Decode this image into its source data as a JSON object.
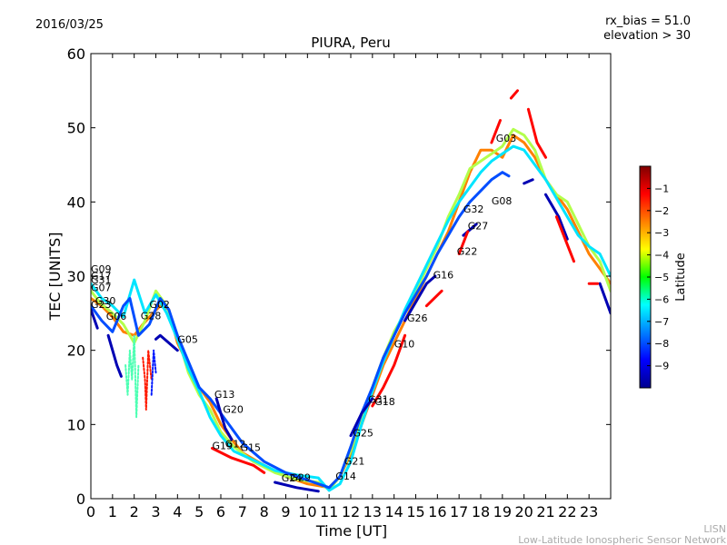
{
  "header": {
    "date": "2016/03/25",
    "rx_bias": "rx_bias = 51.0",
    "elevation": "elevation > 30"
  },
  "footer": {
    "line1": "LISN",
    "line2": "Low-Latitude Ionospheric Sensor Network"
  },
  "chart_data": {
    "type": "line",
    "title": "PIURA, Peru",
    "xlabel": "Time [UT]",
    "ylabel": "TEC [UNITS]",
    "xlim": [
      0,
      24
    ],
    "ylim": [
      0,
      60
    ],
    "xticks": [
      0,
      1,
      2,
      3,
      4,
      5,
      6,
      7,
      8,
      9,
      10,
      11,
      12,
      13,
      14,
      15,
      16,
      17,
      18,
      19,
      20,
      21,
      22,
      23
    ],
    "yticks": [
      0,
      10,
      20,
      30,
      40,
      50,
      60
    ],
    "grid": false,
    "colorbar": {
      "label": "Latitude",
      "range": [
        -10,
        0
      ],
      "ticks": [
        -1,
        -2,
        -3,
        -4,
        -5,
        -6,
        -7,
        -8,
        -9
      ]
    },
    "sat_labels": [
      {
        "name": "G09",
        "x": 0.0,
        "y": 30.5
      },
      {
        "name": "G17",
        "x": 0.0,
        "y": 29.6
      },
      {
        "name": "G31",
        "x": 0.0,
        "y": 29.0
      },
      {
        "name": "G07",
        "x": 0.0,
        "y": 28.0
      },
      {
        "name": "G30",
        "x": 0.2,
        "y": 26.2
      },
      {
        "name": "G23",
        "x": 0.0,
        "y": 25.7
      },
      {
        "name": "G06",
        "x": 0.7,
        "y": 24.1
      },
      {
        "name": "G02",
        "x": 2.7,
        "y": 25.7
      },
      {
        "name": "G28",
        "x": 2.3,
        "y": 24.2
      },
      {
        "name": "G05",
        "x": 4.0,
        "y": 21.0
      },
      {
        "name": "G13",
        "x": 5.7,
        "y": 13.6
      },
      {
        "name": "G20",
        "x": 6.1,
        "y": 11.6
      },
      {
        "name": "G19",
        "x": 5.6,
        "y": 6.7
      },
      {
        "name": "G12",
        "x": 6.2,
        "y": 6.9
      },
      {
        "name": "G15",
        "x": 6.9,
        "y": 6.4
      },
      {
        "name": "G24",
        "x": 8.8,
        "y": 2.3
      },
      {
        "name": "G29",
        "x": 9.2,
        "y": 2.4
      },
      {
        "name": "G14",
        "x": 11.3,
        "y": 2.6
      },
      {
        "name": "G21",
        "x": 11.7,
        "y": 4.6
      },
      {
        "name": "G25",
        "x": 12.1,
        "y": 8.4
      },
      {
        "name": "G31",
        "x": 12.8,
        "y": 12.9
      },
      {
        "name": "G18",
        "x": 13.1,
        "y": 12.6
      },
      {
        "name": "G10",
        "x": 14.0,
        "y": 20.4
      },
      {
        "name": "G26",
        "x": 14.6,
        "y": 23.9
      },
      {
        "name": "G16",
        "x": 15.8,
        "y": 29.7
      },
      {
        "name": "G22",
        "x": 16.9,
        "y": 32.9
      },
      {
        "name": "G27",
        "x": 17.4,
        "y": 36.3
      },
      {
        "name": "G32",
        "x": 17.2,
        "y": 38.6
      },
      {
        "name": "G08",
        "x": 18.5,
        "y": 39.7
      },
      {
        "name": "G03",
        "x": 18.7,
        "y": 48.1
      }
    ],
    "series": [
      {
        "lat": -2.5,
        "style": "solid",
        "points": [
          [
            0,
            27
          ],
          [
            0.5,
            26
          ],
          [
            1,
            24.5
          ],
          [
            1.5,
            22.5
          ],
          [
            2,
            22
          ],
          [
            2.4,
            23.5
          ],
          [
            2.8,
            24.8
          ],
          [
            3.2,
            26
          ],
          [
            3.6,
            25.5
          ],
          [
            4,
            21
          ],
          [
            4.5,
            18
          ],
          [
            5,
            15
          ],
          [
            5.5,
            13
          ],
          [
            6,
            10
          ],
          [
            6.5,
            8
          ],
          [
            7,
            6.2
          ],
          [
            8,
            4.5
          ],
          [
            9,
            3
          ],
          [
            10,
            2
          ],
          [
            11,
            1.5
          ],
          [
            11.5,
            3
          ],
          [
            12,
            6
          ],
          [
            12.5,
            10
          ],
          [
            13,
            14
          ],
          [
            13.5,
            18
          ],
          [
            14,
            21
          ],
          [
            14.5,
            24
          ],
          [
            15,
            27
          ],
          [
            15.5,
            30
          ],
          [
            16,
            33
          ],
          [
            16.5,
            36
          ],
          [
            17,
            40
          ],
          [
            17.5,
            44
          ],
          [
            18,
            47
          ],
          [
            18.5,
            47
          ],
          [
            19,
            46
          ],
          [
            19.5,
            49
          ],
          [
            20,
            48
          ],
          [
            20.5,
            46
          ],
          [
            21,
            43
          ],
          [
            21.5,
            41
          ],
          [
            22,
            39
          ],
          [
            22.5,
            36
          ],
          [
            23,
            33
          ],
          [
            23.5,
            31
          ],
          [
            24,
            29
          ]
        ]
      },
      {
        "lat": -4.5,
        "style": "solid",
        "points": [
          [
            0,
            28
          ],
          [
            0.4,
            26.5
          ],
          [
            1,
            25
          ],
          [
            1.5,
            23.5
          ],
          [
            2,
            21
          ],
          [
            2.5,
            24
          ],
          [
            3,
            28
          ],
          [
            3.5,
            26
          ],
          [
            4,
            22
          ],
          [
            4.5,
            17
          ],
          [
            5,
            14
          ],
          [
            5.5,
            12
          ],
          [
            6,
            9
          ],
          [
            6.6,
            7
          ],
          [
            7.5,
            5
          ],
          [
            8.5,
            3.5
          ],
          [
            9.5,
            2.6
          ],
          [
            10.5,
            2.2
          ],
          [
            11,
            1.2
          ],
          [
            11.5,
            3
          ],
          [
            12,
            6.5
          ],
          [
            12.5,
            11
          ],
          [
            13,
            15
          ],
          [
            13.5,
            19
          ],
          [
            14,
            22.5
          ],
          [
            14.5,
            25
          ],
          [
            15,
            28
          ],
          [
            15.5,
            31
          ],
          [
            16,
            34
          ],
          [
            16.5,
            38
          ],
          [
            17,
            41
          ],
          [
            17.5,
            44.5
          ],
          [
            18,
            45.5
          ],
          [
            18.5,
            46.5
          ],
          [
            19,
            47.5
          ],
          [
            19.5,
            49.8
          ],
          [
            20,
            49
          ],
          [
            20.5,
            47
          ],
          [
            21,
            43
          ],
          [
            21.5,
            41
          ],
          [
            22,
            40
          ],
          [
            22.5,
            37
          ],
          [
            23,
            34
          ],
          [
            23.5,
            32
          ],
          [
            24,
            28
          ]
        ]
      },
      {
        "lat": -6.5,
        "style": "solid",
        "points": [
          [
            0,
            29
          ],
          [
            0.5,
            27
          ],
          [
            1,
            26
          ],
          [
            1.5,
            24.5
          ],
          [
            2,
            29.5
          ],
          [
            2.5,
            25
          ],
          [
            3,
            27.5
          ],
          [
            3.5,
            25
          ],
          [
            4,
            21.5
          ],
          [
            4.5,
            17.5
          ],
          [
            5,
            14.5
          ],
          [
            5.5,
            11
          ],
          [
            6,
            8.5
          ],
          [
            6.6,
            6.4
          ],
          [
            7.5,
            5.2
          ],
          [
            8.5,
            3.8
          ],
          [
            9.5,
            3.2
          ],
          [
            10.5,
            2.8
          ],
          [
            11,
            1.1
          ],
          [
            11.5,
            2
          ],
          [
            12,
            5
          ],
          [
            12.5,
            10
          ],
          [
            13,
            14.5
          ],
          [
            13.5,
            18.5
          ],
          [
            14,
            22
          ],
          [
            14.5,
            25.5
          ],
          [
            15,
            28.5
          ],
          [
            15.5,
            31.5
          ],
          [
            16,
            34.5
          ],
          [
            16.5,
            37.5
          ],
          [
            17,
            40
          ],
          [
            17.5,
            42
          ],
          [
            18,
            44
          ],
          [
            18.5,
            45.5
          ],
          [
            19,
            46.5
          ],
          [
            19.5,
            47.5
          ],
          [
            20,
            47
          ],
          [
            20.5,
            45
          ],
          [
            21,
            43
          ],
          [
            21.5,
            40.5
          ],
          [
            22,
            38
          ],
          [
            22.5,
            35.5
          ],
          [
            23,
            34
          ],
          [
            23.5,
            33
          ],
          [
            24,
            30
          ]
        ]
      },
      {
        "lat": -8.0,
        "style": "solid",
        "points": [
          [
            0,
            26
          ],
          [
            0.5,
            24
          ],
          [
            1,
            22.5
          ],
          [
            1.5,
            26
          ],
          [
            1.8,
            27
          ],
          [
            2.2,
            22
          ],
          [
            2.7,
            23.5
          ],
          [
            3.2,
            27
          ],
          [
            3.6,
            25.5
          ],
          [
            4,
            22
          ],
          [
            4.5,
            18.5
          ],
          [
            5,
            15
          ],
          [
            5.5,
            13.5
          ],
          [
            6,
            11.5
          ],
          [
            6.5,
            9.5
          ],
          [
            7,
            7.5
          ],
          [
            8,
            5
          ],
          [
            9,
            3.5
          ],
          [
            10,
            2.5
          ],
          [
            11,
            1.5
          ],
          [
            11.5,
            3
          ],
          [
            12,
            7
          ],
          [
            12.5,
            11.5
          ],
          [
            13,
            15
          ],
          [
            13.5,
            19
          ],
          [
            14,
            22
          ],
          [
            14.5,
            25
          ],
          [
            15,
            27.5
          ],
          [
            15.5,
            30
          ],
          [
            16,
            33
          ],
          [
            16.5,
            35.5
          ],
          [
            17,
            38
          ],
          [
            17.5,
            40
          ],
          [
            18,
            41.5
          ],
          [
            18.5,
            43
          ],
          [
            19,
            44
          ],
          [
            19.3,
            43.5
          ]
        ]
      },
      {
        "lat": -9.5,
        "style": "solid",
        "points": [
          [
            0,
            25.5
          ],
          [
            0.3,
            23
          ]
        ]
      },
      {
        "lat": -9.5,
        "style": "solid",
        "points": [
          [
            0.8,
            22
          ],
          [
            1.2,
            18
          ],
          [
            1.4,
            16.5
          ]
        ]
      },
      {
        "lat": -9.5,
        "style": "solid",
        "points": [
          [
            3,
            21.5
          ],
          [
            3.2,
            22
          ],
          [
            4,
            20
          ]
        ]
      },
      {
        "lat": -9.5,
        "style": "solid",
        "points": [
          [
            5.8,
            13.5
          ],
          [
            6.2,
            9.5
          ],
          [
            6.5,
            8
          ]
        ]
      },
      {
        "lat": -9.5,
        "style": "solid",
        "points": [
          [
            8.5,
            2.2
          ],
          [
            9.5,
            1.5
          ],
          [
            10.5,
            1
          ]
        ]
      },
      {
        "lat": -9.5,
        "style": "solid",
        "points": [
          [
            12,
            8.5
          ],
          [
            12.5,
            11.5
          ],
          [
            13,
            13.5
          ]
        ]
      },
      {
        "lat": -9.5,
        "style": "solid",
        "points": [
          [
            14.5,
            24
          ],
          [
            15.5,
            29
          ],
          [
            15.9,
            30
          ]
        ]
      },
      {
        "lat": -9.5,
        "style": "solid",
        "points": [
          [
            17.2,
            35.5
          ],
          [
            17.8,
            37
          ]
        ]
      },
      {
        "lat": -9.5,
        "style": "solid",
        "points": [
          [
            20,
            42.5
          ],
          [
            20.4,
            43
          ]
        ]
      },
      {
        "lat": -9.5,
        "style": "solid",
        "points": [
          [
            21,
            41
          ],
          [
            21.6,
            38
          ],
          [
            22,
            35
          ]
        ]
      },
      {
        "lat": -9.5,
        "style": "solid",
        "points": [
          [
            23.5,
            29
          ],
          [
            24,
            25
          ]
        ]
      },
      {
        "lat": -1.3,
        "style": "solid",
        "points": [
          [
            5.6,
            6.8
          ],
          [
            6.5,
            5.5
          ],
          [
            7.5,
            4.5
          ],
          [
            8,
            3.5
          ]
        ]
      },
      {
        "lat": -1.3,
        "style": "solid",
        "points": [
          [
            13,
            12.5
          ],
          [
            13.5,
            15
          ],
          [
            14,
            18
          ],
          [
            14.5,
            22
          ]
        ]
      },
      {
        "lat": -1.3,
        "style": "solid",
        "points": [
          [
            15.5,
            26
          ],
          [
            16.2,
            28
          ]
        ]
      },
      {
        "lat": -1.3,
        "style": "solid",
        "points": [
          [
            17,
            33
          ],
          [
            17.4,
            36
          ]
        ]
      },
      {
        "lat": -1.3,
        "style": "solid",
        "points": [
          [
            18.5,
            48
          ],
          [
            18.9,
            51
          ]
        ]
      },
      {
        "lat": -1.3,
        "style": "solid",
        "points": [
          [
            19.4,
            54
          ],
          [
            19.7,
            55
          ]
        ]
      },
      {
        "lat": -1.3,
        "style": "solid",
        "points": [
          [
            20.2,
            52.5
          ],
          [
            20.6,
            48
          ],
          [
            21,
            46
          ]
        ]
      },
      {
        "lat": -1.3,
        "style": "solid",
        "points": [
          [
            21.5,
            38
          ],
          [
            21.9,
            35
          ],
          [
            22.3,
            32
          ]
        ]
      },
      {
        "lat": -1.3,
        "style": "solid",
        "points": [
          [
            23,
            29
          ],
          [
            23.4,
            29
          ]
        ]
      },
      {
        "lat": -1.5,
        "style": "dotted",
        "points": [
          [
            2.4,
            19
          ],
          [
            2.5,
            16
          ],
          [
            2.55,
            12
          ],
          [
            2.65,
            20
          ],
          [
            2.8,
            16
          ]
        ]
      },
      {
        "lat": -5.5,
        "style": "dotted",
        "points": [
          [
            1.6,
            18
          ],
          [
            1.7,
            14
          ],
          [
            1.8,
            20
          ],
          [
            1.9,
            16
          ],
          [
            2.0,
            22
          ],
          [
            2.1,
            11
          ],
          [
            2.2,
            18
          ]
        ]
      },
      {
        "lat": -8.5,
        "style": "dotted",
        "points": [
          [
            2.8,
            14
          ],
          [
            2.9,
            20
          ],
          [
            3.0,
            17
          ]
        ]
      }
    ]
  }
}
